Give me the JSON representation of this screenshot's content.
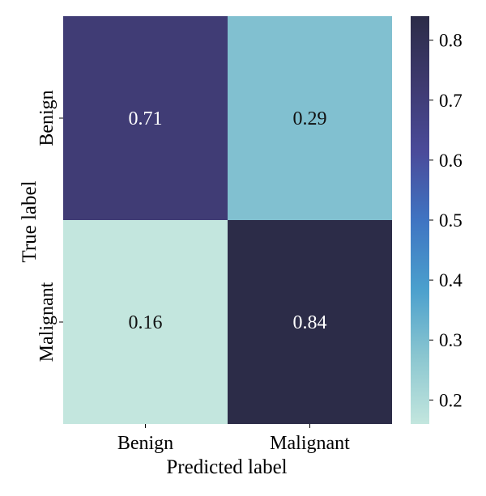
{
  "chart_data": {
    "type": "heatmap",
    "title": "",
    "xlabel": "Predicted label",
    "ylabel": "True label",
    "x_categories": [
      "Benign",
      "Malignant"
    ],
    "y_categories": [
      "Benign",
      "Malignant"
    ],
    "values": [
      [
        0.71,
        0.29
      ],
      [
        0.16,
        0.84
      ]
    ],
    "cell_labels": [
      [
        "0.71",
        "0.29"
      ],
      [
        "0.16",
        "0.84"
      ]
    ],
    "colorbar": {
      "min": 0.16,
      "max": 0.84,
      "ticks": [
        0.2,
        0.3,
        0.4,
        0.5,
        0.6,
        0.7,
        0.8
      ],
      "tick_labels": [
        "0.2",
        "0.3",
        "0.4",
        "0.5",
        "0.6",
        "0.7",
        "0.8"
      ],
      "colormap": "mako_r",
      "stops": [
        "#c3e6de",
        "#8ac6d0",
        "#4a9fcd",
        "#3f74c2",
        "#4a4b9a",
        "#3e3a6f",
        "#2c2c48"
      ]
    },
    "grid": false,
    "legend": "colorbar-right"
  }
}
